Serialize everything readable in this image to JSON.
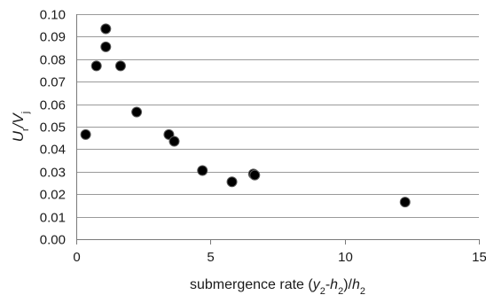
{
  "chart_data": {
    "type": "scatter",
    "title": "",
    "xlabel_parts": [
      {
        "text": "submergence rate (",
        "style": "normal"
      },
      {
        "text": "y",
        "style": "italic"
      },
      {
        "text": "2",
        "style": "sub"
      },
      {
        "text": "-",
        "style": "normal"
      },
      {
        "text": "h",
        "style": "italic"
      },
      {
        "text": "2",
        "style": "sub"
      },
      {
        "text": ")/",
        "style": "normal"
      },
      {
        "text": "h",
        "style": "italic"
      },
      {
        "text": "2",
        "style": "sub"
      }
    ],
    "ylabel_parts": [
      {
        "text": "U",
        "style": "italic"
      },
      {
        "text": "r",
        "style": "sub"
      },
      {
        "text": "/",
        "style": "italic"
      },
      {
        "text": "V",
        "style": "italic"
      },
      {
        "text": "j",
        "style": "sub"
      }
    ],
    "xlim": [
      0,
      15
    ],
    "ylim": [
      0,
      0.1
    ],
    "x_ticks": [
      0,
      5,
      10,
      15
    ],
    "x_tick_labels": [
      "0",
      "5",
      "10",
      "15"
    ],
    "y_ticks": [
      0,
      0.01,
      0.02,
      0.03,
      0.04,
      0.05,
      0.06,
      0.07,
      0.08,
      0.09,
      0.1
    ],
    "y_tick_labels": [
      "0.00",
      "0.01",
      "0.02",
      "0.03",
      "0.04",
      "0.05",
      "0.06",
      "0.07",
      "0.08",
      "0.09",
      "0.10"
    ],
    "grid": "horizontal",
    "marker_color": "#000000",
    "series": [
      {
        "points": [
          {
            "x": 0.35,
            "y": 0.0465
          },
          {
            "x": 0.75,
            "y": 0.077
          },
          {
            "x": 1.1,
            "y": 0.0935
          },
          {
            "x": 1.1,
            "y": 0.0855
          },
          {
            "x": 1.65,
            "y": 0.077
          },
          {
            "x": 2.25,
            "y": 0.0565
          },
          {
            "x": 3.45,
            "y": 0.0465
          },
          {
            "x": 3.65,
            "y": 0.0435
          },
          {
            "x": 4.7,
            "y": 0.0305
          },
          {
            "x": 5.8,
            "y": 0.0255
          },
          {
            "x": 6.6,
            "y": 0.029
          },
          {
            "x": 6.65,
            "y": 0.0285
          },
          {
            "x": 12.25,
            "y": 0.0165
          }
        ]
      }
    ]
  }
}
